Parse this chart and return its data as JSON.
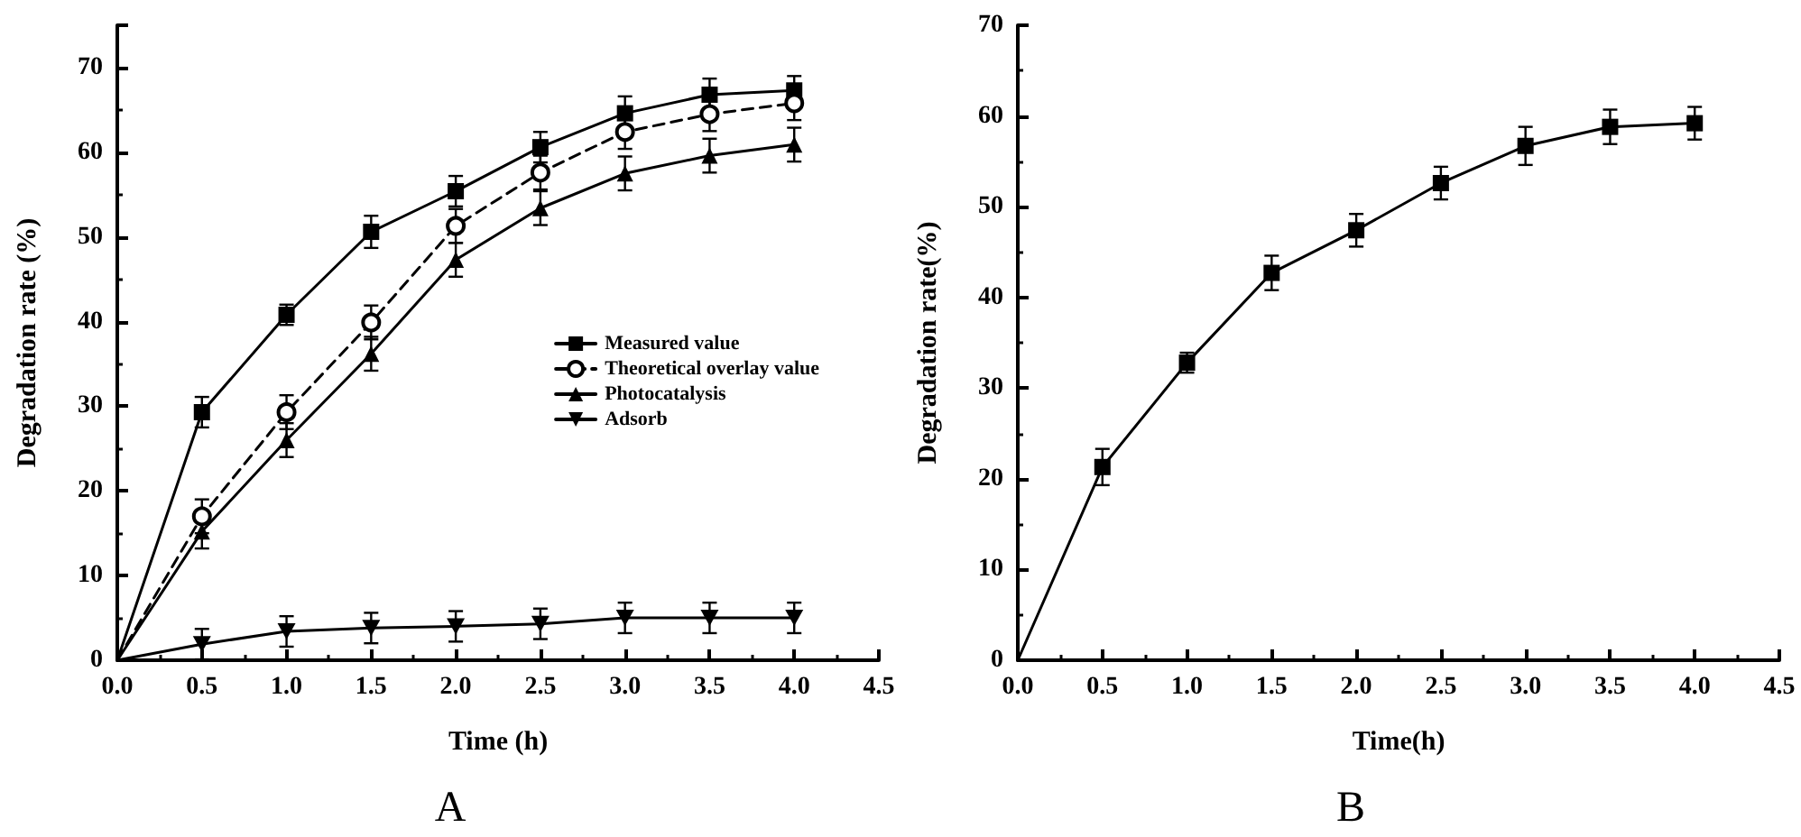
{
  "chart_data": [
    {
      "type": "line",
      "xlabel": "Time (h)",
      "ylabel": "Degradation rate (%)",
      "x": [
        0,
        0.5,
        1,
        1.5,
        2,
        2.5,
        3,
        3.5,
        4
      ],
      "series": [
        {
          "name": "Measured value",
          "color": "#000000",
          "marker": "square",
          "values": [
            0,
            29.3,
            40.8,
            50.6,
            55.4,
            60.6,
            64.6,
            66.8,
            67.3
          ],
          "errors": [
            null,
            1.8,
            1.2,
            1.9,
            1.8,
            1.8,
            2.0,
            1.9,
            1.7
          ]
        },
        {
          "name": "Theoretical overlay value",
          "color": "#000000",
          "marker": "circle",
          "line_style": "dashed",
          "values": [
            0,
            17.0,
            29.3,
            39.9,
            51.3,
            57.6,
            62.4,
            64.5,
            65.8
          ],
          "errors": [
            null,
            2.0,
            2.0,
            2.0,
            2.0,
            2.0,
            2.0,
            2.0,
            2.0
          ]
        },
        {
          "name": "Photocatalysis",
          "color": "#000000",
          "marker": "triangle",
          "values": [
            0,
            15.2,
            26.0,
            36.2,
            47.3,
            53.4,
            57.5,
            59.6,
            60.9
          ],
          "errors": [
            null,
            2.0,
            2.0,
            2.0,
            2.0,
            2.0,
            2.0,
            2.0,
            2.0
          ]
        },
        {
          "name": "Adsorb",
          "color": "#000000",
          "marker": "triangle-down",
          "values": [
            0,
            1.9,
            3.4,
            3.8,
            4.0,
            4.3,
            5.0,
            5.0,
            5.0
          ],
          "errors": [
            null,
            1.8,
            1.8,
            1.8,
            1.8,
            1.8,
            1.8,
            1.8,
            1.8
          ]
        }
      ],
      "xlim": [
        0,
        4.5
      ],
      "xticks": [
        {
          "value": 0,
          "label": "0.0"
        },
        {
          "value": 0.5,
          "label": "0.5"
        },
        {
          "value": 1,
          "label": "1.0"
        },
        {
          "value": 1.5,
          "label": "1.5"
        },
        {
          "value": 2,
          "label": "2.0"
        },
        {
          "value": 2.5,
          "label": "2.5"
        },
        {
          "value": 3,
          "label": "3.0"
        },
        {
          "value": 3.5,
          "label": "3.5"
        },
        {
          "value": 4,
          "label": "4.0"
        },
        {
          "value": 4.5,
          "label": "4.5"
        }
      ],
      "ylim": [
        0,
        75
      ],
      "yticks": [
        0,
        10,
        20,
        30,
        40,
        50,
        60,
        70
      ],
      "grid": false,
      "legend": "right",
      "line_style": "solid",
      "annotations": [
        "A"
      ]
    },
    {
      "type": "line",
      "xlabel": "Time(h)",
      "ylabel": "Degradation rate(%)",
      "x": [
        0,
        0.5,
        1,
        1.5,
        2,
        2.5,
        3,
        3.5,
        4
      ],
      "series": [
        {
          "color": "#000000",
          "marker": "square",
          "values": [
            0,
            21.3,
            32.8,
            42.7,
            47.4,
            52.6,
            56.7,
            58.8,
            59.2
          ],
          "errors": [
            null,
            2.0,
            1.1,
            1.9,
            1.8,
            1.8,
            2.1,
            1.9,
            1.8
          ]
        }
      ],
      "xlim": [
        0,
        4.5
      ],
      "xticks": [
        {
          "value": 0,
          "label": "0.0"
        },
        {
          "value": 0.5,
          "label": "0.5"
        },
        {
          "value": 1,
          "label": "1.0"
        },
        {
          "value": 1.5,
          "label": "1.5"
        },
        {
          "value": 2,
          "label": "2.0"
        },
        {
          "value": 2.5,
          "label": "2.5"
        },
        {
          "value": 3,
          "label": "3.0"
        },
        {
          "value": 3.5,
          "label": "3.5"
        },
        {
          "value": 4,
          "label": "4.0"
        },
        {
          "value": 4.5,
          "label": "4.5"
        }
      ],
      "ylim": [
        0,
        70
      ],
      "yticks": [
        0,
        10,
        20,
        30,
        40,
        50,
        60,
        70
      ],
      "grid": false,
      "legend": false,
      "line_style": "solid",
      "annotations": [
        "B"
      ]
    }
  ]
}
